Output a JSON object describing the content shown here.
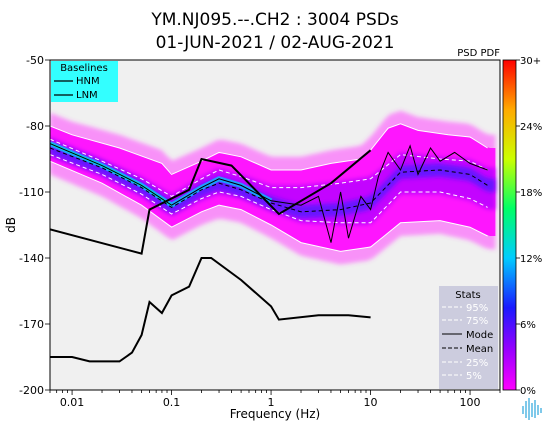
{
  "title": {
    "line1": "YM.NJ095.--.CH2 : 3004 PSDs",
    "line2": "01-JUN-2021 / 02-AUG-2021"
  },
  "chart_data": {
    "type": "heatmap",
    "subtype": "psd-pdf",
    "xlabel": "Frequency (Hz)",
    "ylabel": "dB",
    "xscale": "log",
    "xlim": [
      0.006,
      200
    ],
    "ylim": [
      -200,
      -50
    ],
    "xticks": [
      {
        "v": 0.01,
        "label": "0.01"
      },
      {
        "v": 0.1,
        "label": "0.1"
      },
      {
        "v": 1,
        "label": "1"
      },
      {
        "v": 10,
        "label": "10"
      },
      {
        "v": 100,
        "label": "100"
      }
    ],
    "yticks": [
      {
        "v": -50,
        "label": "-50"
      },
      {
        "v": -80,
        "label": "-80"
      },
      {
        "v": -110,
        "label": "-110"
      },
      {
        "v": -140,
        "label": "-140"
      },
      {
        "v": -170,
        "label": "-170"
      },
      {
        "v": -200,
        "label": "-200"
      }
    ],
    "colorbar": {
      "title": "PSD PDF",
      "range": [
        0,
        30
      ],
      "ticks": [
        "0%",
        "6%",
        "12%",
        "18%",
        "24%",
        "30+"
      ],
      "colors": [
        "#ff00ff",
        "#9400ff",
        "#1a1aff",
        "#00ccff",
        "#00ff66",
        "#ccff00",
        "#ffcc00",
        "#ff0000"
      ]
    },
    "baselines": {
      "title": "Baselines",
      "entries": [
        "HNM",
        "LNM"
      ],
      "HNM": [
        {
          "x": 0.006,
          "y": -127
        },
        {
          "x": 0.05,
          "y": -138
        },
        {
          "x": 0.06,
          "y": -118
        },
        {
          "x": 0.15,
          "y": -109
        },
        {
          "x": 0.2,
          "y": -95
        },
        {
          "x": 0.4,
          "y": -98
        },
        {
          "x": 1.2,
          "y": -120
        },
        {
          "x": 4,
          "y": -106
        },
        {
          "x": 10,
          "y": -91
        }
      ],
      "LNM": [
        {
          "x": 0.006,
          "y": -185
        },
        {
          "x": 0.01,
          "y": -185
        },
        {
          "x": 0.015,
          "y": -187
        },
        {
          "x": 0.03,
          "y": -187
        },
        {
          "x": 0.04,
          "y": -183
        },
        {
          "x": 0.05,
          "y": -175
        },
        {
          "x": 0.06,
          "y": -160
        },
        {
          "x": 0.08,
          "y": -165
        },
        {
          "x": 0.1,
          "y": -157
        },
        {
          "x": 0.15,
          "y": -153
        },
        {
          "x": 0.2,
          "y": -140
        },
        {
          "x": 0.25,
          "y": -140
        },
        {
          "x": 0.5,
          "y": -150
        },
        {
          "x": 1,
          "y": -162
        },
        {
          "x": 1.2,
          "y": -168
        },
        {
          "x": 3,
          "y": -166
        },
        {
          "x": 6,
          "y": -166
        },
        {
          "x": 10,
          "y": -167
        }
      ]
    },
    "stats": {
      "title": "Stats",
      "entries": [
        "95%",
        "75%",
        "Mode",
        "Mean",
        "25%",
        "5%"
      ],
      "p95": [
        {
          "x": 0.006,
          "y": -80
        },
        {
          "x": 0.01,
          "y": -84
        },
        {
          "x": 0.03,
          "y": -90
        },
        {
          "x": 0.08,
          "y": -97
        },
        {
          "x": 0.1,
          "y": -102
        },
        {
          "x": 0.2,
          "y": -96
        },
        {
          "x": 0.3,
          "y": -92
        },
        {
          "x": 0.5,
          "y": -94
        },
        {
          "x": 1,
          "y": -100
        },
        {
          "x": 2,
          "y": -100
        },
        {
          "x": 4,
          "y": -97
        },
        {
          "x": 8,
          "y": -95
        },
        {
          "x": 10,
          "y": -91
        },
        {
          "x": 15,
          "y": -81
        },
        {
          "x": 20,
          "y": -79
        },
        {
          "x": 30,
          "y": -82
        },
        {
          "x": 60,
          "y": -84
        },
        {
          "x": 100,
          "y": -85
        },
        {
          "x": 150,
          "y": -90
        }
      ],
      "p75": [
        {
          "x": 0.006,
          "y": -86
        },
        {
          "x": 0.02,
          "y": -96
        },
        {
          "x": 0.05,
          "y": -104
        },
        {
          "x": 0.1,
          "y": -112
        },
        {
          "x": 0.2,
          "y": -104
        },
        {
          "x": 0.3,
          "y": -100
        },
        {
          "x": 0.5,
          "y": -103
        },
        {
          "x": 1,
          "y": -108
        },
        {
          "x": 2,
          "y": -108
        },
        {
          "x": 5,
          "y": -106
        },
        {
          "x": 10,
          "y": -104
        },
        {
          "x": 20,
          "y": -93
        },
        {
          "x": 50,
          "y": -95
        },
        {
          "x": 100,
          "y": -96
        },
        {
          "x": 150,
          "y": -100
        }
      ],
      "mode": [
        {
          "x": 0.006,
          "y": -88
        },
        {
          "x": 0.02,
          "y": -98
        },
        {
          "x": 0.05,
          "y": -107
        },
        {
          "x": 0.1,
          "y": -116
        },
        {
          "x": 0.2,
          "y": -108
        },
        {
          "x": 0.3,
          "y": -104
        },
        {
          "x": 0.5,
          "y": -107
        },
        {
          "x": 1,
          "y": -114
        },
        {
          "x": 2,
          "y": -116
        },
        {
          "x": 3,
          "y": -112
        },
        {
          "x": 4,
          "y": -133
        },
        {
          "x": 5,
          "y": -110
        },
        {
          "x": 6,
          "y": -131
        },
        {
          "x": 8,
          "y": -112
        },
        {
          "x": 10,
          "y": -118
        },
        {
          "x": 12,
          "y": -103
        },
        {
          "x": 15,
          "y": -92
        },
        {
          "x": 20,
          "y": -100
        },
        {
          "x": 25,
          "y": -89
        },
        {
          "x": 30,
          "y": -102
        },
        {
          "x": 40,
          "y": -90
        },
        {
          "x": 50,
          "y": -96
        },
        {
          "x": 70,
          "y": -92
        },
        {
          "x": 100,
          "y": -97
        },
        {
          "x": 150,
          "y": -100
        }
      ],
      "mean": [
        {
          "x": 0.006,
          "y": -90
        },
        {
          "x": 0.02,
          "y": -99
        },
        {
          "x": 0.05,
          "y": -108
        },
        {
          "x": 0.1,
          "y": -117
        },
        {
          "x": 0.2,
          "y": -109
        },
        {
          "x": 0.3,
          "y": -106
        },
        {
          "x": 0.5,
          "y": -109
        },
        {
          "x": 1,
          "y": -115
        },
        {
          "x": 2,
          "y": -119
        },
        {
          "x": 5,
          "y": -118
        },
        {
          "x": 10,
          "y": -115
        },
        {
          "x": 20,
          "y": -101
        },
        {
          "x": 50,
          "y": -100
        },
        {
          "x": 100,
          "y": -102
        },
        {
          "x": 150,
          "y": -107
        }
      ],
      "p25": [
        {
          "x": 0.006,
          "y": -93
        },
        {
          "x": 0.02,
          "y": -102
        },
        {
          "x": 0.05,
          "y": -111
        },
        {
          "x": 0.1,
          "y": -120
        },
        {
          "x": 0.2,
          "y": -113
        },
        {
          "x": 0.3,
          "y": -110
        },
        {
          "x": 0.5,
          "y": -112
        },
        {
          "x": 1,
          "y": -118
        },
        {
          "x": 2,
          "y": -123
        },
        {
          "x": 5,
          "y": -124
        },
        {
          "x": 10,
          "y": -124
        },
        {
          "x": 20,
          "y": -110
        },
        {
          "x": 50,
          "y": -110
        },
        {
          "x": 100,
          "y": -113
        },
        {
          "x": 150,
          "y": -117
        }
      ],
      "p5": [
        {
          "x": 0.006,
          "y": -96
        },
        {
          "x": 0.02,
          "y": -106
        },
        {
          "x": 0.05,
          "y": -116
        },
        {
          "x": 0.1,
          "y": -126
        },
        {
          "x": 0.2,
          "y": -119
        },
        {
          "x": 0.3,
          "y": -116
        },
        {
          "x": 0.5,
          "y": -118
        },
        {
          "x": 1,
          "y": -125
        },
        {
          "x": 2,
          "y": -133
        },
        {
          "x": 5,
          "y": -137
        },
        {
          "x": 10,
          "y": -135
        },
        {
          "x": 20,
          "y": -124
        },
        {
          "x": 50,
          "y": -123
        },
        {
          "x": 100,
          "y": -126
        },
        {
          "x": 150,
          "y": -130
        }
      ]
    }
  }
}
